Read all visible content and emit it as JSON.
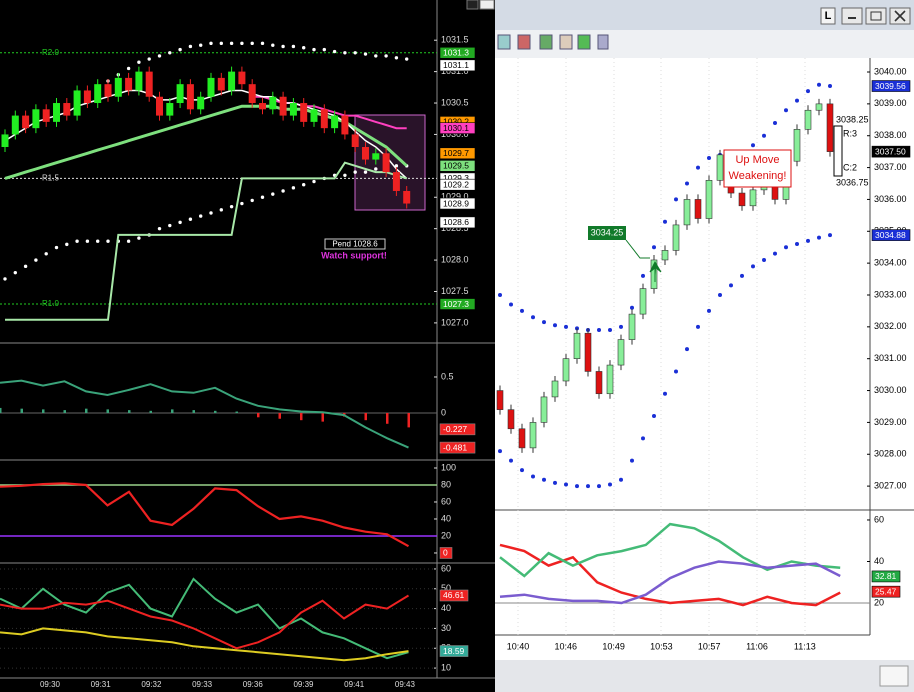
{
  "window": {
    "button": "L"
  },
  "left": {
    "main": {
      "ylim": [
        1026.68,
        1032.14
      ],
      "yticks": [
        1031.5,
        {
          "value": 1031,
          "label": "1031.0"
        },
        1030.5,
        {
          "value": 1030,
          "label": "1030.0"
        },
        {
          "value": 1029,
          "label": "1029.0"
        },
        1028.5,
        {
          "value": 1028,
          "label": "1028.0"
        },
        1027.5,
        {
          "value": 1027,
          "label": "1027.0"
        }
      ],
      "first_open": 1029.8,
      "closes": [
        1030.0,
        1030.3,
        1030.1,
        1030.4,
        1030.2,
        1030.5,
        1030.3,
        1030.7,
        1030.5,
        1030.8,
        1030.6,
        1030.9,
        1030.7,
        1031.0,
        1030.6,
        1030.3,
        1030.5,
        1030.8,
        1030.4,
        1030.6,
        1030.9,
        1030.7,
        1031.0,
        1030.8,
        1030.5,
        1030.4,
        1030.6,
        1030.3,
        1030.5,
        1030.2,
        1030.4,
        1030.1,
        1030.3,
        1030.0,
        1029.8,
        1029.6,
        1029.7,
        1029.4,
        1029.1,
        1028.9
      ],
      "lines": [
        {
          "color": "#7ee07e",
          "width": 3,
          "values": [
            1029.3,
            1029.35,
            1029.4,
            1029.45,
            1029.5,
            1029.55,
            1029.6,
            1029.65,
            1029.7,
            1029.75,
            1029.8,
            1029.85,
            1029.9,
            1029.95,
            1030.0,
            1030.05,
            1030.1,
            1030.15,
            1030.2,
            1030.25,
            1030.3,
            1030.35,
            1030.4,
            1030.45,
            1030.45,
            1030.45,
            1030.45,
            1030.4,
            1030.4,
            1030.4,
            1030.35,
            1030.3,
            1030.25,
            1030.2,
            1030.1,
            1030.0,
            1029.9,
            1029.8,
            1029.65,
            1029.5
          ]
        },
        {
          "color": "#ff40c0",
          "width": 2,
          "values": [
            null,
            null,
            null,
            null,
            null,
            null,
            null,
            null,
            null,
            null,
            null,
            null,
            null,
            null,
            null,
            null,
            null,
            null,
            null,
            null,
            null,
            null,
            null,
            null,
            1030.6,
            1030.6,
            1030.55,
            1030.5,
            1030.5,
            1030.45,
            1030.45,
            1030.4,
            1030.35,
            1030.3,
            1030.3,
            1030.25,
            1030.2,
            1030.15,
            1030.1,
            1030.1
          ]
        },
        {
          "color": "#ffffff",
          "width": 1.5,
          "values": [
            1029.9,
            1030.0,
            1030.1,
            1030.2,
            1030.25,
            1030.3,
            1030.35,
            1030.45,
            1030.5,
            1030.55,
            1030.6,
            1030.65,
            1030.7,
            1030.7,
            1030.65,
            1030.55,
            1030.55,
            1030.6,
            1030.55,
            1030.55,
            1030.6,
            1030.65,
            1030.7,
            1030.7,
            1030.65,
            1030.6,
            1030.6,
            1030.5,
            1030.5,
            1030.45,
            1030.4,
            1030.35,
            1030.3,
            1030.2,
            1030.05,
            1029.9,
            1029.8,
            1029.65,
            1029.45,
            1029.3
          ]
        },
        {
          "color": "#a8e8a8",
          "width": 2,
          "values": [
            1027.05,
            1027.05,
            1027.05,
            1027.05,
            1027.05,
            1027.05,
            1027.05,
            1027.05,
            1027.05,
            1027.05,
            1027.05,
            1028.4,
            1028.4,
            1028.4,
            1028.4,
            1028.4,
            1028.4,
            1028.4,
            1028.4,
            1028.4,
            1028.4,
            1028.4,
            1028.4,
            1029.3,
            1029.3,
            1029.3,
            1029.3,
            1029.3,
            1029.3,
            1029.3,
            1029.3,
            1029.3,
            1029.3,
            1029.55,
            1029.5,
            1029.45,
            1029.4,
            1029.4,
            1029.35,
            1029.3
          ]
        }
      ],
      "dots": [
        {
          "color": "#ffffff",
          "values": [
            null,
            null,
            null,
            null,
            null,
            null,
            null,
            null,
            1030.55,
            1030.7,
            1030.85,
            1030.95,
            1031.05,
            1031.15,
            1031.2,
            1031.25,
            1031.3,
            1031.35,
            1031.4,
            1031.42,
            1031.45,
            1031.45,
            1031.45,
            1031.45,
            1031.45,
            1031.45,
            1031.42,
            1031.4,
            1031.4,
            1031.38,
            1031.35,
            1031.35,
            1031.32,
            1031.3,
            1031.3,
            1031.28,
            1031.25,
            1031.25,
            1031.22,
            1031.2
          ]
        },
        {
          "color": "#ffffff",
          "values": [
            1027.7,
            1027.8,
            1027.9,
            1028.0,
            1028.1,
            1028.2,
            1028.25,
            1028.3,
            1028.3,
            1028.3,
            1028.3,
            1028.3,
            1028.3,
            1028.35,
            1028.4,
            1028.5,
            1028.55,
            1028.6,
            1028.65,
            1028.7,
            1028.75,
            1028.8,
            1028.85,
            1028.9,
            1028.95,
            1029.0,
            1029.05,
            1029.1,
            1029.15,
            1029.2,
            1029.25,
            1029.3,
            1029.35,
            1029.35,
            1029.4,
            1029.4,
            1029.45,
            1029.45,
            1029.5,
            1029.5
          ]
        }
      ],
      "levels": [
        {
          "label": "R2.0",
          "value": 1031.3,
          "color": "#22cc22"
        },
        {
          "label": "R1.5",
          "value": 1029.3,
          "color": "#dddddd"
        },
        {
          "label": "R1.0",
          "value": 1027.3,
          "color": "#22cc22"
        }
      ],
      "tags": [
        {
          "value": 1031.3,
          "color": "#22aa22"
        },
        {
          "value": 1031.1,
          "color": "#ffffff"
        },
        {
          "value": 1030.2,
          "color": "#ff9900"
        },
        {
          "value": 1030.1,
          "color": "#ff40c0"
        },
        {
          "value": 1029.7,
          "color": "#ff9900"
        },
        {
          "value": 1029.5,
          "color": "#7ee07e"
        },
        {
          "value": 1029.3,
          "color": "#ffffff"
        },
        {
          "value": 1029.2,
          "color": "#ffffff"
        },
        {
          "value": 1028.9,
          "color": "#ffffff"
        },
        {
          "value": 1028.6,
          "color": "#ffffff"
        },
        {
          "value": 1027.3,
          "color": "#22aa22"
        }
      ],
      "pending": "Pend 1028.6",
      "note": "Watch support!"
    },
    "osc1": {
      "ylim": [
        -0.653,
        0.972
      ],
      "yticks": [
        0.5,
        0
      ],
      "histogram": [
        0.07,
        0.06,
        0.05,
        0.04,
        0.06,
        0.05,
        0.04,
        0.03,
        0.05,
        0.04,
        0.03,
        0.02,
        -0.06,
        -0.08,
        -0.1,
        -0.12,
        -0.05,
        -0.1,
        -0.15,
        -0.2
      ],
      "line": [
        0.42,
        0.45,
        0.38,
        0.44,
        0.3,
        0.25,
        0.32,
        0.4,
        0.3,
        0.28,
        0.35,
        0.2,
        0.1,
        0.05,
        0.02,
        0.01,
        -0.03,
        -0.2,
        -0.35,
        -0.481
      ],
      "tags": [
        {
          "value": -0.227,
          "color": "#ee2222"
        },
        {
          "value": -0.481,
          "color": "#ee2222"
        }
      ]
    },
    "osc2": {
      "ylim": [
        -11.8,
        109.4
      ],
      "yticks": [
        100,
        80,
        60,
        40,
        20,
        0
      ],
      "levels": [
        {
          "value": 80,
          "color": "#9ad28a"
        },
        {
          "value": 20,
          "color": "#9933ff"
        }
      ],
      "line": [
        78,
        79,
        81,
        82,
        80,
        56,
        72,
        38,
        33,
        52,
        76,
        74,
        55,
        40,
        43,
        38,
        30,
        25,
        22,
        8
      ],
      "tags": [
        {
          "value": 0,
          "color": "#ee2222"
        }
      ]
    },
    "osc3": {
      "ylim": [
        5,
        63
      ],
      "yticks": [
        60,
        50,
        40,
        30,
        20,
        10
      ],
      "lines": [
        {
          "color": "#44bb77",
          "values": [
            45,
            40,
            50,
            42,
            38,
            48,
            52,
            40,
            36,
            55,
            45,
            38,
            42,
            30,
            35,
            28,
            25,
            20,
            15,
            18
          ]
        },
        {
          "color": "#ee2222",
          "values": [
            42,
            40,
            40,
            43,
            42,
            44,
            40,
            36,
            34,
            30,
            25,
            20,
            23,
            28,
            38,
            44,
            35,
            42,
            40,
            46.61
          ]
        },
        {
          "color": "#ddcc22",
          "values": [
            28,
            27,
            30,
            29,
            28,
            26,
            25,
            24,
            23,
            21,
            20,
            19,
            18,
            17,
            16,
            15,
            14,
            15,
            17,
            18.59
          ]
        }
      ],
      "tags": [
        {
          "value": 46.61,
          "color": "#ee2222"
        },
        {
          "value": 18.59,
          "color": "#33aa99"
        }
      ]
    },
    "times": [
      "09:30",
      "09:31",
      "09:32",
      "09:33",
      "09:36",
      "09:39",
      "09:41",
      "09:43"
    ]
  },
  "right": {
    "main": {
      "ylim": [
        3026.25,
        3040.44
      ],
      "yticks": [
        {
          "value": 3040,
          "label": "3040.00"
        },
        {
          "value": 3039,
          "label": "3039.00"
        },
        {
          "value": 3038,
          "label": "3038.00"
        },
        {
          "value": 3037,
          "label": "3037.00"
        },
        {
          "value": 3036,
          "label": "3036.00"
        },
        {
          "value": 3035,
          "label": "3035.00"
        },
        {
          "value": 3034,
          "label": "3034.00"
        },
        {
          "value": 3033,
          "label": "3033.00"
        },
        {
          "value": 3032,
          "label": "3032.00"
        },
        {
          "value": 3031,
          "label": "3031.00"
        },
        {
          "value": 3030,
          "label": "3030.00"
        },
        {
          "value": 3029,
          "label": "3029.00"
        },
        {
          "value": 3028,
          "label": "3028.00"
        },
        {
          "value": 3027,
          "label": "3027.00"
        }
      ],
      "first_open": 3030.0,
      "closes": [
        3029.4,
        3028.8,
        3028.2,
        3029.0,
        3029.8,
        3030.3,
        3031.0,
        3031.8,
        3030.6,
        3029.9,
        3030.8,
        3031.6,
        3032.4,
        3033.2,
        3034.1,
        3034.4,
        3035.2,
        3036.0,
        3035.4,
        3036.6,
        3037.4,
        3036.2,
        3035.8,
        3036.3,
        3036.8,
        3036.0,
        3037.2,
        3038.2,
        3038.8,
        3039.0,
        3037.5
      ],
      "dots": [
        {
          "color": "#1a2fd6",
          "values": [
            3033.0,
            3032.7,
            3032.5,
            3032.3,
            3032.15,
            3032.05,
            3032.0,
            3031.95,
            3031.9,
            3031.9,
            3031.9,
            3032.0,
            3032.6,
            3033.6,
            3034.5,
            3035.3,
            3036.0,
            3036.5,
            3037.0,
            3037.3,
            3037.4,
            3037.4,
            3037.5,
            3037.7,
            3038.0,
            3038.4,
            3038.8,
            3039.1,
            3039.4,
            3039.6,
            3039.56
          ]
        },
        {
          "color": "#1a2fd6",
          "values": [
            3028.1,
            3027.8,
            3027.5,
            3027.3,
            3027.2,
            3027.1,
            3027.05,
            3027.0,
            3027.0,
            3027.0,
            3027.05,
            3027.2,
            3027.8,
            3028.5,
            3029.2,
            3029.9,
            3030.6,
            3031.3,
            3032.0,
            3032.5,
            3033.0,
            3033.3,
            3033.6,
            3033.9,
            3034.1,
            3034.3,
            3034.5,
            3034.6,
            3034.7,
            3034.8,
            3034.88
          ]
        }
      ],
      "tags": [
        {
          "value": 3039.56,
          "color": "#1a2fd6"
        },
        {
          "value": {
            "value": 3037.5,
            "label": "3037.50"
          },
          "color": "#000000"
        },
        {
          "value": 3034.88,
          "color": "#1a2fd6"
        }
      ],
      "entry": "3034.25",
      "alert": [
        "Up Move",
        "Weakening!"
      ],
      "bar_info": [
        "3038.25",
        "R:3",
        "C:2",
        "3036.75"
      ]
    },
    "osc": {
      "ylim": [
        4.6,
        64.8
      ],
      "yticks": [
        60,
        40,
        20
      ],
      "level": 20,
      "lines": [
        {
          "color": "#ee2222",
          "values": [
            48,
            45,
            38,
            42,
            30,
            25,
            22,
            20,
            21,
            22,
            19,
            23,
            20,
            19,
            25
          ]
        },
        {
          "color": "#44bb77",
          "values": [
            42,
            33,
            44,
            38,
            43,
            45,
            48,
            58,
            56,
            50,
            42,
            36,
            40,
            38,
            37
          ]
        },
        {
          "color": "#7a5ccf",
          "values": [
            23,
            24,
            22,
            21,
            21,
            20,
            24,
            32,
            37,
            40,
            39,
            37,
            38,
            39,
            33
          ]
        }
      ],
      "tags": [
        {
          "value": 32.81,
          "color": "#22aa44"
        },
        {
          "value": 25.47,
          "color": "#ee2222"
        }
      ]
    },
    "times": [
      "10:40",
      "10:46",
      "10:49",
      "10:53",
      "10:57",
      "11:06",
      "11:13"
    ]
  }
}
